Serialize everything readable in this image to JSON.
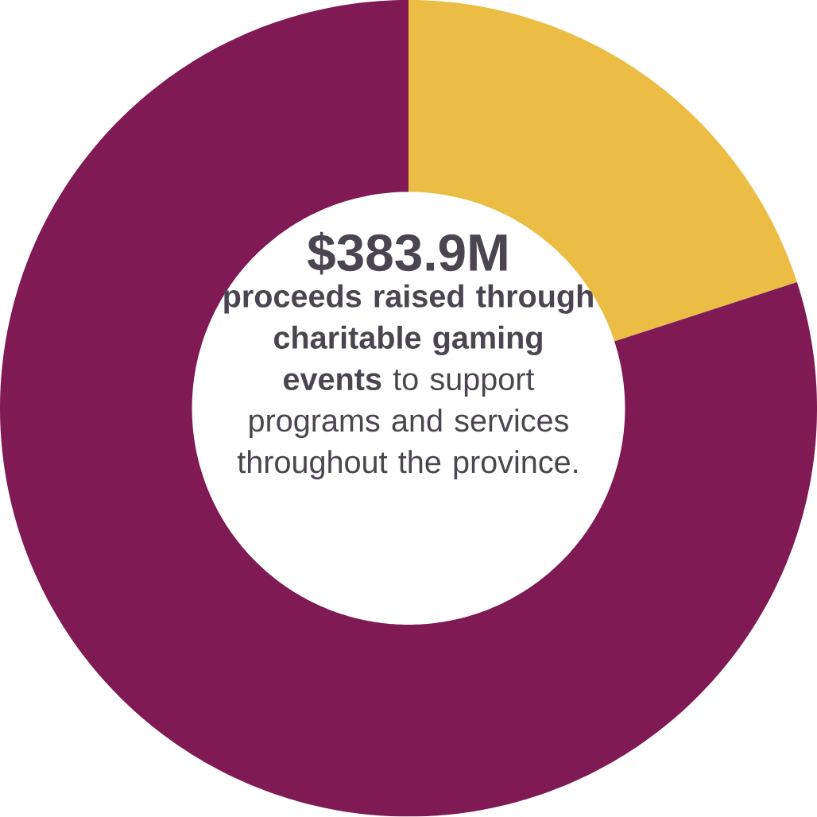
{
  "chart_data": {
    "type": "donut",
    "title": "$383.9M",
    "annotations": [
      "**proceeds raised through charitable gaming events** to support programs and services throughout the province."
    ],
    "categories": [
      null,
      null
    ],
    "values": [
      20,
      80
    ],
    "colors": [
      "#ecbd45",
      "#7f1a55"
    ]
  }
}
